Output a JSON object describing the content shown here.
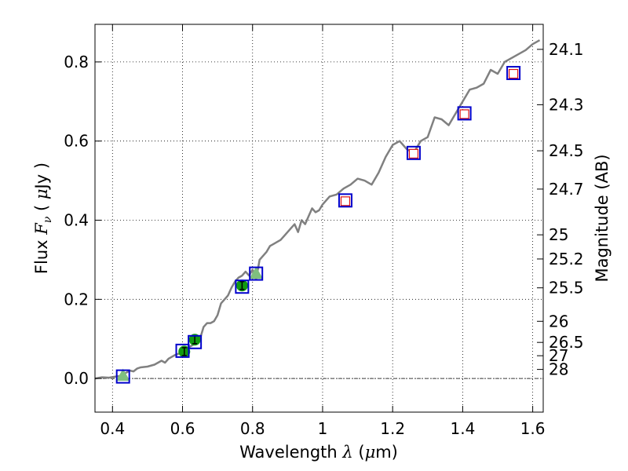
{
  "chart_data": {
    "type": "line",
    "xlabel": "Wavelength  λ (μm)",
    "ylabel": "Flux  F_ν  ( μJy )",
    "ylabel_parts": {
      "a": "Flux  ",
      "b": "F",
      "c": "ν",
      "d": "  ( ",
      "e": "μ",
      "f": "Jy )"
    },
    "xlabel_parts": {
      "a": "Wavelength  ",
      "b": "λ",
      "c": " (",
      "d": "μ",
      "e": "m)"
    },
    "y2label": "Magnitude (AB)",
    "xlim": [
      0.35,
      1.63
    ],
    "ylim": [
      -0.085,
      0.895
    ],
    "grid": true,
    "x_ticks": [
      0.4,
      0.6,
      0.8,
      1.0,
      1.2,
      1.4,
      1.6
    ],
    "x_tick_labels": [
      "0.4",
      "0.6",
      "0.8",
      "1",
      "1.2",
      "1.4",
      "1.6"
    ],
    "y_ticks": [
      0.0,
      0.2,
      0.4,
      0.6,
      0.8
    ],
    "y_tick_labels": [
      "0.0",
      "0.2",
      "0.4",
      "0.6",
      "0.8"
    ],
    "mag_ticks": [
      24.1,
      24.3,
      24.5,
      24.7,
      25,
      25.2,
      25.5,
      26,
      26.5,
      27,
      28
    ],
    "mag_tick_labels": [
      "24.1",
      "24.3",
      "24.5",
      "24.7",
      "25",
      "25.2",
      "25.5",
      "26",
      "26.5",
      "27",
      "28"
    ],
    "spectrum": {
      "color": "#808080",
      "x": [
        0.35,
        0.37,
        0.39,
        0.41,
        0.42,
        0.43,
        0.44,
        0.45,
        0.46,
        0.47,
        0.48,
        0.5,
        0.52,
        0.54,
        0.55,
        0.56,
        0.57,
        0.58,
        0.59,
        0.6,
        0.61,
        0.62,
        0.63,
        0.64,
        0.65,
        0.66,
        0.67,
        0.68,
        0.69,
        0.7,
        0.71,
        0.72,
        0.73,
        0.74,
        0.75,
        0.76,
        0.77,
        0.78,
        0.79,
        0.8,
        0.81,
        0.82,
        0.83,
        0.84,
        0.85,
        0.86,
        0.87,
        0.88,
        0.89,
        0.9,
        0.91,
        0.92,
        0.93,
        0.94,
        0.95,
        0.96,
        0.97,
        0.98,
        0.99,
        1.0,
        1.02,
        1.04,
        1.06,
        1.08,
        1.1,
        1.12,
        1.14,
        1.16,
        1.18,
        1.2,
        1.22,
        1.24,
        1.26,
        1.28,
        1.3,
        1.32,
        1.34,
        1.36,
        1.38,
        1.4,
        1.42,
        1.44,
        1.46,
        1.48,
        1.5,
        1.52,
        1.54,
        1.56,
        1.58,
        1.6,
        1.62
      ],
      "y": [
        0.0,
        0.003,
        0.002,
        0.005,
        0.006,
        0.01,
        0.015,
        0.02,
        0.018,
        0.025,
        0.028,
        0.03,
        0.035,
        0.045,
        0.04,
        0.05,
        0.055,
        0.06,
        0.063,
        0.07,
        0.075,
        0.08,
        0.085,
        0.09,
        0.1,
        0.13,
        0.14,
        0.14,
        0.145,
        0.16,
        0.19,
        0.2,
        0.21,
        0.23,
        0.245,
        0.255,
        0.26,
        0.27,
        0.26,
        0.275,
        0.25,
        0.3,
        0.31,
        0.32,
        0.335,
        0.34,
        0.345,
        0.35,
        0.36,
        0.37,
        0.38,
        0.39,
        0.37,
        0.4,
        0.39,
        0.41,
        0.43,
        0.42,
        0.425,
        0.44,
        0.46,
        0.465,
        0.48,
        0.49,
        0.505,
        0.5,
        0.49,
        0.52,
        0.56,
        0.59,
        0.6,
        0.58,
        0.57,
        0.6,
        0.61,
        0.66,
        0.655,
        0.64,
        0.67,
        0.7,
        0.73,
        0.735,
        0.745,
        0.78,
        0.77,
        0.8,
        0.81,
        0.82,
        0.83,
        0.845,
        0.855
      ]
    },
    "series": [
      {
        "name": "",
        "marker": "blue square",
        "color": "#0000cc",
        "x": [
          0.43,
          0.6,
          0.635,
          0.77,
          0.81,
          1.065,
          1.26,
          1.405,
          1.545
        ],
        "y": [
          0.005,
          0.07,
          0.092,
          0.232,
          0.265,
          0.45,
          0.57,
          0.67,
          0.772
        ]
      },
      {
        "name": "",
        "marker": "red open square",
        "color": "#dd1111",
        "x": [
          1.065,
          1.26,
          1.405,
          1.545
        ],
        "y": [
          0.448,
          0.568,
          0.668,
          0.77
        ]
      },
      {
        "name": "",
        "marker": "green triangle",
        "color": "#7fbf7f",
        "x": [
          0.43,
          0.81
        ],
        "y": [
          0.007,
          0.265
        ]
      },
      {
        "name": "",
        "marker": "green circle with error bar",
        "color": "#119911",
        "x": [
          0.605,
          0.635,
          0.77
        ],
        "y": [
          0.068,
          0.098,
          0.235
        ]
      }
    ]
  }
}
